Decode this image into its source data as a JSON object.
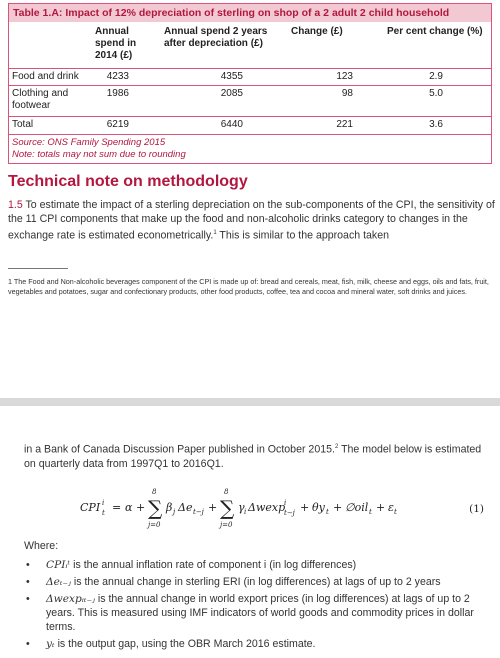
{
  "table": {
    "title": "Table 1.A: Impact of 12% depreciation of sterling on shop of a 2 adult 2 child household",
    "headers": {
      "annual": "Annual spend in 2014 (£)",
      "after": "Annual spend 2 years after depreciation (£)",
      "change": "Change (£)",
      "pct": "Per cent change (%)"
    },
    "rows": [
      {
        "label": "Food and drink",
        "annual": "4233",
        "after": "4355",
        "change": "123",
        "pct": "2.9"
      },
      {
        "label": "Clothing and footwear",
        "annual": "1986",
        "after": "2085",
        "change": "98",
        "pct": "5.0"
      },
      {
        "label": "Total",
        "annual": "6219",
        "after": "6440",
        "change": "221",
        "pct": "3.6"
      }
    ],
    "source": "Source: ONS Family Spending 2015",
    "note": "Note: totals may not sum due to rounding"
  },
  "heading": "Technical note on methodology",
  "para": {
    "num": "1.5",
    "text": "To estimate the impact of a sterling depreciation on the sub-components of the CPI, the sensitivity of the 11 CPI components that make up the food and non-alcoholic drinks category to changes in the exchange rate is estimated econometrically.",
    "fnref": "1",
    "tail": "This is similar to the approach taken"
  },
  "footnote": "1 The Food and Non-alcoholic beverages component of the CPI is made up of: bread and cereals, meat, fish, milk, cheese and eggs, oils and fats, fruit, vegetables and potatoes, sugar and confectionary products, other food products, coffee, tea and cocoa and mineral water, soft drinks and juices.",
  "page2": {
    "text1": "in a Bank of Canada Discussion Paper published in October 2015.",
    "fnref": "2",
    "text2": "The model below is estimated on quarterly data from 1997Q1 to 2016Q1.",
    "eq_number": "(1)",
    "where": "Where:",
    "bullets": [
      {
        "sym": "CPIᵢᵗ",
        "text": "is the annual inflation rate of component i (in log differences)"
      },
      {
        "sym": "Δeₜ₋ⱼ",
        "text": "is the annual change in sterling ERI (in log differences) at lags of up to 2 years"
      },
      {
        "sym": "Δwexpᵢₜ₋ⱼ",
        "text": "is the annual change in world export prices (in log differences) at lags of up to 2 years. This is measured using IMF indicators of world goods and commodity prices in dollar terms."
      },
      {
        "sym": "yₜ",
        "text": "is the output gap, using the OBR March 2016 estimate."
      }
    ]
  }
}
